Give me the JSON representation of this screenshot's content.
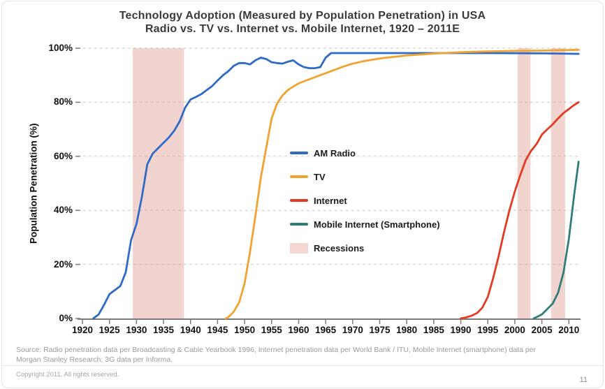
{
  "footer": {
    "source_line1": "Source: Radio penetration data per Broadcasting & Cable Yearbook 1996, Internet penetration data per World Bank / ITU, Mobile Internet (smartphone) data per",
    "source_line2": "Morgan Stanley Research; 3G data per Informa.",
    "copyright": "Copyright 2011. All rights reserved.",
    "page_number": "11"
  },
  "chart_data": {
    "type": "line",
    "title": "Technology Adoption (Measured by Population Penetration) in USA",
    "subtitle": "Radio vs. TV vs. Internet vs. Mobile Internet, 1920 – 2011E",
    "xlabel": "",
    "ylabel": "Population Penetration (%)",
    "xlim": [
      1920,
      2011.9
    ],
    "ylim": [
      0,
      100
    ],
    "x_ticks": [
      1920,
      1925,
      1930,
      1935,
      1940,
      1945,
      1950,
      1955,
      1960,
      1965,
      1970,
      1975,
      1980,
      1985,
      1990,
      1995,
      2000,
      2005,
      2010
    ],
    "y_ticks": [
      {
        "value": 0,
        "label": "0%"
      },
      {
        "value": 20,
        "label": "20%"
      },
      {
        "value": 40,
        "label": "40%"
      },
      {
        "value": 60,
        "label": "60%"
      },
      {
        "value": 80,
        "label": "80%"
      },
      {
        "value": 100,
        "label": "100%"
      }
    ],
    "grid": "horizontal-dashed",
    "grid_color": "#c8c8c8",
    "axis_color": "#7a7a7a",
    "legend_position": "inside-center",
    "series": [
      {
        "name": "AM Radio",
        "color": "#2f6bc6",
        "points": [
          [
            1922,
            0
          ],
          [
            1923,
            1.5
          ],
          [
            1924,
            5
          ],
          [
            1925,
            9
          ],
          [
            1926,
            10.5
          ],
          [
            1927,
            12
          ],
          [
            1928,
            17
          ],
          [
            1929,
            29
          ],
          [
            1930,
            35
          ],
          [
            1931,
            45
          ],
          [
            1932,
            57
          ],
          [
            1933,
            61
          ],
          [
            1934,
            63
          ],
          [
            1935,
            65
          ],
          [
            1936,
            67
          ],
          [
            1937,
            69.5
          ],
          [
            1938,
            73
          ],
          [
            1939,
            78
          ],
          [
            1940,
            81
          ],
          [
            1941,
            82
          ],
          [
            1942,
            83
          ],
          [
            1943,
            84.5
          ],
          [
            1944,
            86
          ],
          [
            1945,
            88
          ],
          [
            1946,
            90
          ],
          [
            1947,
            91.5
          ],
          [
            1948,
            93.5
          ],
          [
            1949,
            94.5
          ],
          [
            1950,
            94.5
          ],
          [
            1951,
            94
          ],
          [
            1952,
            95.5
          ],
          [
            1953,
            96.5
          ],
          [
            1954,
            96
          ],
          [
            1955,
            94.8
          ],
          [
            1956,
            94.5
          ],
          [
            1957,
            94.3
          ],
          [
            1958,
            95
          ],
          [
            1959,
            95.5
          ],
          [
            1960,
            94
          ],
          [
            1961,
            93
          ],
          [
            1962,
            92.6
          ],
          [
            1963,
            92.6
          ],
          [
            1964,
            93
          ],
          [
            1965,
            96.5
          ],
          [
            1966,
            98.2
          ],
          [
            1975,
            98.2
          ],
          [
            1985,
            98.2
          ],
          [
            1995,
            98.2
          ],
          [
            2005,
            98.1
          ],
          [
            2011.8,
            97.9
          ]
        ]
      },
      {
        "name": "TV",
        "color": "#f0a330",
        "points": [
          [
            1946.5,
            0
          ],
          [
            1947,
            0.5
          ],
          [
            1948,
            2.5
          ],
          [
            1949,
            6
          ],
          [
            1950,
            13
          ],
          [
            1951,
            24.5
          ],
          [
            1952,
            38
          ],
          [
            1953,
            52
          ],
          [
            1954,
            63
          ],
          [
            1955,
            74
          ],
          [
            1956,
            79.5
          ],
          [
            1957,
            82.5
          ],
          [
            1958,
            84.5
          ],
          [
            1959,
            85.8
          ],
          [
            1960,
            87
          ],
          [
            1962,
            88.5
          ],
          [
            1964,
            90
          ],
          [
            1966,
            91.5
          ],
          [
            1968,
            93
          ],
          [
            1970,
            94.3
          ],
          [
            1972,
            95.2
          ],
          [
            1975,
            96.2
          ],
          [
            1980,
            97.3
          ],
          [
            1985,
            98
          ],
          [
            1990,
            98.5
          ],
          [
            1995,
            98.8
          ],
          [
            2000,
            99
          ],
          [
            2005,
            99.1
          ],
          [
            2011.8,
            99.4
          ]
        ]
      },
      {
        "name": "Internet",
        "color": "#e33b22",
        "points": [
          [
            1990,
            0
          ],
          [
            1991,
            0.4
          ],
          [
            1992,
            1
          ],
          [
            1993,
            2
          ],
          [
            1994,
            4
          ],
          [
            1995,
            8
          ],
          [
            1996,
            15
          ],
          [
            1997,
            23
          ],
          [
            1998,
            32
          ],
          [
            1999,
            40
          ],
          [
            2000,
            47
          ],
          [
            2001,
            53
          ],
          [
            2002,
            58.5
          ],
          [
            2003,
            62
          ],
          [
            2004,
            64.5
          ],
          [
            2005,
            68
          ],
          [
            2006,
            70
          ],
          [
            2007,
            71.8
          ],
          [
            2008,
            74
          ],
          [
            2009,
            76
          ],
          [
            2010,
            77.5
          ],
          [
            2011,
            79
          ],
          [
            2011.8,
            80
          ]
        ]
      },
      {
        "name": "Mobile Internet (Smartphone)",
        "color": "#2e7d78",
        "points": [
          [
            2003.5,
            0
          ],
          [
            2004,
            0.5
          ],
          [
            2005,
            1.5
          ],
          [
            2006,
            3.5
          ],
          [
            2007,
            5.5
          ],
          [
            2008,
            9.5
          ],
          [
            2009,
            17
          ],
          [
            2010,
            29.5
          ],
          [
            2011,
            46
          ],
          [
            2011.8,
            58
          ]
        ]
      }
    ],
    "recessions": {
      "label": "Recessions",
      "fill": "rgba(212,122,105,0.32)",
      "legend_color": "#f2d7d2",
      "bands": [
        [
          1929.3,
          1938.8
        ],
        [
          2000.5,
          2002.9
        ],
        [
          2006.7,
          2009.3
        ]
      ]
    },
    "legend": [
      {
        "label": "AM Radio",
        "color": "#2f6bc6",
        "type": "line"
      },
      {
        "label": "TV",
        "color": "#f0a330",
        "type": "line"
      },
      {
        "label": "Internet",
        "color": "#e33b22",
        "type": "line"
      },
      {
        "label": "Mobile Internet (Smartphone)",
        "color": "#2e7d78",
        "type": "line"
      },
      {
        "label": "Recessions",
        "color": "#f2d7d2",
        "type": "box"
      }
    ]
  }
}
